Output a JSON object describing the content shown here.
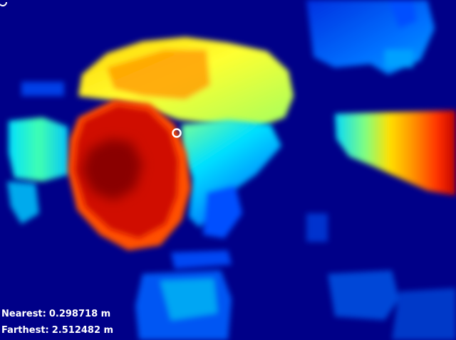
{
  "depth_view": {
    "colormap": [
      "#000088",
      "#0040ff",
      "#00a0ff",
      "#00ffff",
      "#80ff80",
      "#ffff00",
      "#ff8000",
      "#ff2000",
      "#a00000"
    ],
    "background_color": "#000088",
    "marker_color": "#ffffff",
    "marker_icon": "target-circle"
  },
  "readouts": {
    "nearest_label": "Nearest:",
    "nearest_value": "0.298718 m",
    "farthest_label": "Farthest:",
    "farthest_value": "2.512482 m"
  }
}
